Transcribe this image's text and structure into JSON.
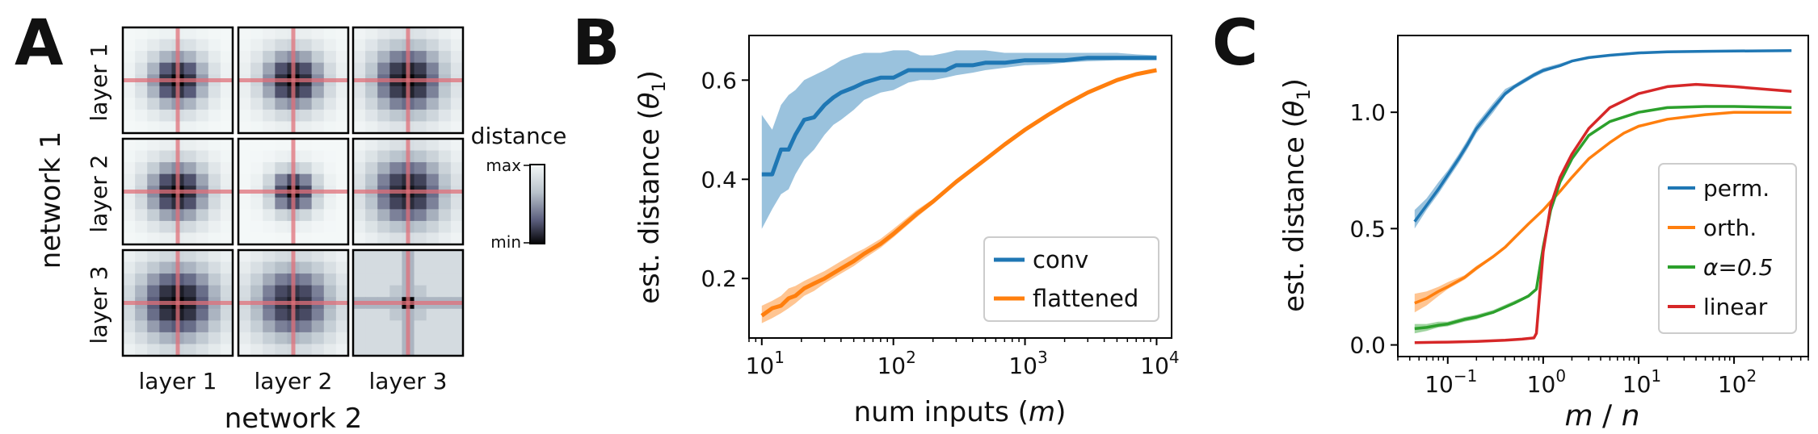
{
  "panel_labels": [
    "A",
    "B",
    "C"
  ],
  "colors": {
    "blue": "#1f77b4",
    "orange": "#ff7f0e",
    "green": "#2ca02c",
    "red": "#d62728",
    "crosshair": "#e0707a"
  },
  "chart_data": [
    {
      "type": "heatmap",
      "panel": "A",
      "row_axis_label": "network 1",
      "col_axis_label": "network 2",
      "row_labels": [
        "layer 1",
        "layer 2",
        "layer 3"
      ],
      "col_labels": [
        "layer 1",
        "layer 2",
        "layer 3"
      ],
      "colorbar": {
        "title": "distance",
        "max_label": "max",
        "min_label": "min"
      },
      "cells": [
        [
          {
            "size": 2.6,
            "peak": 1.0
          },
          {
            "size": 3.0,
            "peak": 1.0
          },
          {
            "size": 4.2,
            "peak": 1.0
          }
        ],
        [
          {
            "size": 3.0,
            "peak": 1.0
          },
          {
            "size": 1.6,
            "peak": 1.0
          },
          {
            "size": 4.6,
            "peak": 0.95
          }
        ],
        [
          {
            "size": 5.2,
            "peak": 1.0
          },
          {
            "size": 5.2,
            "peak": 0.9
          },
          {
            "size": 8.0,
            "peak": 0.55,
            "block": true
          }
        ]
      ]
    },
    {
      "type": "line",
      "panel": "B",
      "xlabel": "num inputs (",
      "xlabel_var": "m",
      "xlabel_end": ")",
      "ylabel": "est. distance (",
      "ylabel_var": "θ",
      "ylabel_sub": "1",
      "ylabel_end": ")",
      "xscale": "log",
      "xlim": [
        8,
        13000
      ],
      "ylim": [
        0.08,
        0.69
      ],
      "xticks": [
        10,
        100,
        1000,
        10000
      ],
      "xtick_labels": [
        [
          "10",
          "1"
        ],
        [
          "10",
          "2"
        ],
        [
          "10",
          "3"
        ],
        [
          "10",
          "4"
        ]
      ],
      "yticks": [
        0.2,
        0.4,
        0.6
      ],
      "ytick_labels": [
        "0.2",
        "0.4",
        "0.6"
      ],
      "legend_position": "lower-right",
      "series": [
        {
          "name": "conv",
          "color": "#1f77b4",
          "x": [
            10,
            12,
            14,
            16,
            18,
            21,
            25,
            30,
            35,
            40,
            50,
            60,
            80,
            100,
            130,
            160,
            200,
            250,
            300,
            400,
            500,
            700,
            1000,
            1500,
            2000,
            3000,
            5000,
            7000,
            10000
          ],
          "y": [
            0.41,
            0.41,
            0.46,
            0.46,
            0.49,
            0.52,
            0.525,
            0.55,
            0.565,
            0.575,
            0.585,
            0.595,
            0.605,
            0.605,
            0.62,
            0.62,
            0.62,
            0.62,
            0.63,
            0.63,
            0.635,
            0.635,
            0.64,
            0.64,
            0.64,
            0.645,
            0.645,
            0.645,
            0.645
          ],
          "lower": [
            0.3,
            0.34,
            0.37,
            0.38,
            0.41,
            0.44,
            0.46,
            0.49,
            0.51,
            0.52,
            0.54,
            0.56,
            0.575,
            0.58,
            0.595,
            0.6,
            0.6,
            0.605,
            0.61,
            0.615,
            0.62,
            0.625,
            0.63,
            0.632,
            0.635,
            0.638,
            0.64,
            0.64,
            0.64
          ],
          "upper": [
            0.53,
            0.5,
            0.55,
            0.57,
            0.58,
            0.6,
            0.61,
            0.62,
            0.63,
            0.64,
            0.65,
            0.655,
            0.655,
            0.66,
            0.66,
            0.65,
            0.65,
            0.655,
            0.66,
            0.66,
            0.66,
            0.655,
            0.655,
            0.655,
            0.655,
            0.655,
            0.655,
            0.652,
            0.65
          ]
        },
        {
          "name": "flattened",
          "color": "#ff7f0e",
          "x": [
            10,
            12,
            14,
            16,
            18,
            21,
            25,
            30,
            40,
            50,
            60,
            80,
            100,
            150,
            200,
            300,
            500,
            700,
            1000,
            1500,
            2000,
            3000,
            5000,
            7000,
            10000
          ],
          "y": [
            0.125,
            0.14,
            0.145,
            0.16,
            0.165,
            0.18,
            0.19,
            0.2,
            0.22,
            0.235,
            0.25,
            0.27,
            0.29,
            0.33,
            0.355,
            0.395,
            0.44,
            0.47,
            0.5,
            0.53,
            0.55,
            0.575,
            0.6,
            0.612,
            0.62
          ],
          "lower": [
            0.11,
            0.12,
            0.13,
            0.14,
            0.15,
            0.165,
            0.175,
            0.19,
            0.21,
            0.225,
            0.24,
            0.262,
            0.283,
            0.323,
            0.35,
            0.39,
            0.436,
            0.466,
            0.497,
            0.527,
            0.548,
            0.573,
            0.598,
            0.61,
            0.618
          ],
          "upper": [
            0.145,
            0.155,
            0.165,
            0.18,
            0.185,
            0.195,
            0.205,
            0.215,
            0.235,
            0.25,
            0.26,
            0.28,
            0.3,
            0.338,
            0.36,
            0.4,
            0.445,
            0.475,
            0.504,
            0.534,
            0.553,
            0.578,
            0.603,
            0.615,
            0.623
          ]
        }
      ]
    },
    {
      "type": "line",
      "panel": "C",
      "xlabel_var1": "m",
      "xlabel_sep": " / ",
      "xlabel_var2": "n",
      "ylabel": "est. distance (",
      "ylabel_var": "θ",
      "ylabel_sub": "1",
      "ylabel_end": ")",
      "xscale": "log",
      "xlim": [
        0.03,
        600
      ],
      "ylim": [
        -0.05,
        1.33
      ],
      "xticks": [
        0.1,
        1,
        10,
        100
      ],
      "xtick_labels": [
        [
          "10",
          "−1"
        ],
        [
          "10",
          "0"
        ],
        [
          "10",
          "1"
        ],
        [
          "10",
          "2"
        ]
      ],
      "yticks": [
        0.0,
        0.5,
        1.0
      ],
      "ytick_labels": [
        "0.0",
        "0.5",
        "1.0"
      ],
      "legend_position": "lower-right",
      "series": [
        {
          "name": "perm.",
          "color": "#1f77b4",
          "x": [
            0.045,
            0.06,
            0.08,
            0.1,
            0.13,
            0.16,
            0.2,
            0.25,
            0.3,
            0.4,
            0.5,
            0.6,
            0.8,
            1,
            1.5,
            2,
            3,
            5,
            10,
            20,
            50,
            100,
            400
          ],
          "y": [
            0.53,
            0.6,
            0.67,
            0.73,
            0.8,
            0.86,
            0.93,
            0.98,
            1.02,
            1.08,
            1.11,
            1.13,
            1.16,
            1.18,
            1.2,
            1.22,
            1.235,
            1.245,
            1.255,
            1.26,
            1.262,
            1.263,
            1.265
          ],
          "lower": [
            0.5,
            0.58,
            0.65,
            0.71,
            0.78,
            0.84,
            0.91,
            0.96,
            1.0,
            1.07,
            1.1,
            1.12,
            1.15,
            1.17,
            1.195,
            1.215,
            1.23,
            1.24,
            1.25,
            1.257,
            1.259,
            1.26,
            1.262
          ],
          "upper": [
            0.58,
            0.63,
            0.7,
            0.75,
            0.82,
            0.88,
            0.95,
            1.0,
            1.04,
            1.1,
            1.12,
            1.14,
            1.17,
            1.19,
            1.21,
            1.225,
            1.24,
            1.25,
            1.26,
            1.264,
            1.266,
            1.267,
            1.268
          ]
        },
        {
          "name": "orth.",
          "color": "#ff7f0e",
          "x": [
            0.045,
            0.06,
            0.08,
            0.1,
            0.15,
            0.2,
            0.3,
            0.4,
            0.5,
            0.7,
            1,
            1.5,
            2,
            3,
            5,
            7,
            10,
            20,
            50,
            100,
            400
          ],
          "y": [
            0.18,
            0.2,
            0.23,
            0.25,
            0.29,
            0.33,
            0.38,
            0.42,
            0.46,
            0.52,
            0.58,
            0.66,
            0.72,
            0.8,
            0.87,
            0.91,
            0.94,
            0.97,
            0.99,
            1.0,
            1.0
          ],
          "lower": [
            0.14,
            0.17,
            0.21,
            0.24,
            0.28,
            0.32,
            0.375,
            0.415,
            0.455,
            0.515,
            0.575,
            0.656,
            0.716,
            0.797,
            0.867,
            0.907,
            0.937,
            0.967,
            0.987,
            0.997,
            0.997
          ],
          "upper": [
            0.22,
            0.23,
            0.25,
            0.27,
            0.3,
            0.34,
            0.385,
            0.425,
            0.465,
            0.525,
            0.585,
            0.664,
            0.724,
            0.803,
            0.873,
            0.913,
            0.943,
            0.973,
            0.993,
            1.003,
            1.003
          ]
        },
        {
          "name": "α=0.5",
          "color": "#2ca02c",
          "x": [
            0.045,
            0.06,
            0.08,
            0.1,
            0.15,
            0.2,
            0.3,
            0.5,
            0.7,
            0.85,
            1,
            1.2,
            1.5,
            2,
            3,
            5,
            10,
            20,
            50,
            100,
            400
          ],
          "y": [
            0.07,
            0.075,
            0.085,
            0.09,
            0.11,
            0.12,
            0.14,
            0.18,
            0.21,
            0.24,
            0.42,
            0.58,
            0.7,
            0.8,
            0.9,
            0.96,
            1.0,
            1.02,
            1.025,
            1.025,
            1.02
          ],
          "lower": [
            0.05,
            0.06,
            0.075,
            0.08,
            0.1,
            0.11,
            0.135,
            0.175,
            0.205,
            0.235,
            0.415,
            0.575,
            0.695,
            0.795,
            0.895,
            0.955,
            0.995,
            1.015,
            1.02,
            1.02,
            1.015
          ],
          "upper": [
            0.09,
            0.09,
            0.1,
            0.1,
            0.12,
            0.13,
            0.15,
            0.19,
            0.215,
            0.245,
            0.425,
            0.585,
            0.705,
            0.805,
            0.905,
            0.965,
            1.005,
            1.025,
            1.03,
            1.03,
            1.025
          ]
        },
        {
          "name": "linear",
          "color": "#d62728",
          "x": [
            0.045,
            0.1,
            0.2,
            0.4,
            0.6,
            0.8,
            0.85,
            1,
            1.2,
            1.5,
            2,
            3,
            5,
            10,
            20,
            40,
            100,
            400
          ],
          "y": [
            0.01,
            0.012,
            0.015,
            0.02,
            0.025,
            0.03,
            0.05,
            0.4,
            0.6,
            0.72,
            0.82,
            0.93,
            1.02,
            1.08,
            1.11,
            1.12,
            1.11,
            1.09
          ]
        }
      ]
    }
  ]
}
